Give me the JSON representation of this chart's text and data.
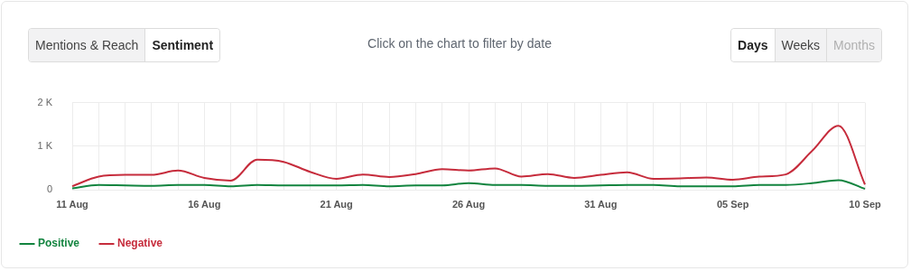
{
  "chart_data": {
    "type": "line",
    "subtitle": "Click on the chart to filter by date",
    "annotations": [
      "Mentions & Reach",
      "Sentiment",
      "Days",
      "Weeks",
      "Months"
    ],
    "categories": [
      "11 Aug",
      null,
      null,
      null,
      null,
      "16 Aug",
      null,
      null,
      null,
      null,
      "21 Aug",
      null,
      null,
      null,
      null,
      "26 Aug",
      null,
      null,
      null,
      null,
      "31 Aug",
      null,
      null,
      null,
      null,
      "05 Sep",
      null,
      null,
      null,
      null,
      "10 Sep"
    ],
    "series": [
      {
        "name": "Positive",
        "color": "#12843f",
        "values": [
          30,
          110,
          100,
          90,
          110,
          110,
          80,
          110,
          100,
          100,
          100,
          110,
          80,
          100,
          100,
          150,
          110,
          110,
          90,
          90,
          100,
          110,
          110,
          80,
          80,
          80,
          110,
          110,
          150,
          220,
          20
        ]
      },
      {
        "name": "Negative",
        "color": "#c62c3c",
        "values": [
          80,
          300,
          340,
          340,
          440,
          270,
          210,
          690,
          640,
          410,
          250,
          350,
          290,
          360,
          470,
          440,
          490,
          300,
          360,
          270,
          340,
          400,
          250,
          260,
          280,
          230,
          300,
          350,
          890,
          1470,
          120
        ]
      }
    ],
    "ylim": [
      0,
      2000
    ],
    "yticks": [
      0,
      {
        "value": 1000,
        "label": "1 K"
      },
      {
        "value": 2000,
        "label": "2 K"
      }
    ],
    "grid": true,
    "legend": "bottom left",
    "marker": "none",
    "line_style": "solid"
  }
}
